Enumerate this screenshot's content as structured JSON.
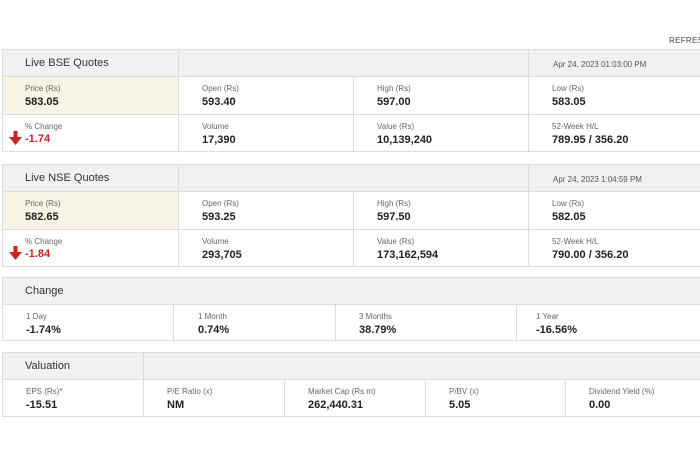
{
  "refresh_label": "REFRESH",
  "bse": {
    "title": "Live BSE Quotes",
    "timestamp": "Apr 24, 2023 01:03:00 PM",
    "price_label": "Price (Rs)",
    "price": "583.05",
    "open_label": "Open (Rs)",
    "open": "593.40",
    "high_label": "High (Rs)",
    "high": "597.00",
    "low_label": "Low (Rs)",
    "low": "583.05",
    "change_label": "% Change",
    "change": "-1.74",
    "volume_label": "Volume",
    "volume": "17,390",
    "value_label": "Value (Rs)",
    "value": "10,139,240",
    "week52_label": "52-Week H/L",
    "week52": "789.95 / 356.20"
  },
  "nse": {
    "title": "Live NSE Quotes",
    "timestamp": "Apr 24, 2023 1:04:59 PM",
    "price_label": "Price (Rs)",
    "price": "582.65",
    "open_label": "Open (Rs)",
    "open": "593.25",
    "high_label": "High (Rs)",
    "high": "597.50",
    "low_label": "Low (Rs)",
    "low": "582.05",
    "change_label": "% Change",
    "change": "-1.84",
    "volume_label": "Volume",
    "volume": "293,705",
    "value_label": "Value (Rs)",
    "value": "173,162,594",
    "week52_label": "52-Week H/L",
    "week52": "790.00 / 356.20"
  },
  "change": {
    "title": "Change",
    "periods": [
      {
        "label": "1 Day",
        "value": "-1.74%"
      },
      {
        "label": "1 Month",
        "value": "0.74%"
      },
      {
        "label": "3 Months",
        "value": "38.79%"
      },
      {
        "label": "1 Year",
        "value": "-16.56%"
      }
    ]
  },
  "valuation": {
    "title": "Valuation",
    "items": [
      {
        "label": "EPS (Rs)*",
        "value": "-15.51"
      },
      {
        "label": "P/E Ratio (x)",
        "value": "NM"
      },
      {
        "label": "Market Cap (Rs m)",
        "value": "262,440.31"
      },
      {
        "label": "P/BV (x)",
        "value": "5.05"
      },
      {
        "label": "Dividend Yield (%)",
        "value": "0.00"
      }
    ]
  },
  "colors": {
    "negative": "#cc2222",
    "highlight": "#f7f4e4",
    "header_bg": "#f1f1f1"
  },
  "icons": {
    "down_arrow": "arrow-down-icon"
  }
}
